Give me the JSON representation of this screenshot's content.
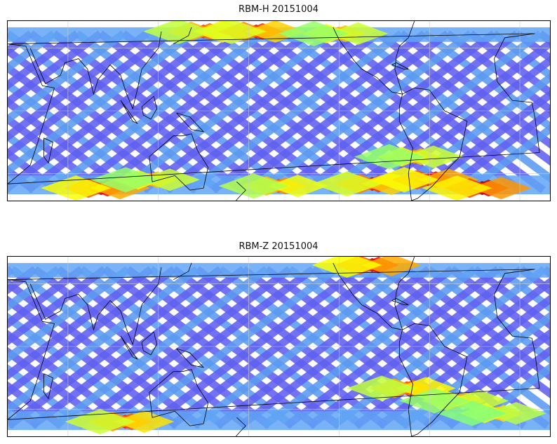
{
  "panels": [
    {
      "title": "RBM-H 20151004",
      "hot": [
        {
          "lon": 82,
          "lat": -37,
          "level": 0.95
        },
        {
          "lon": 115,
          "lat": -33,
          "level": 0.6
        },
        {
          "lon": 200,
          "lat": -36,
          "level": 0.7
        },
        {
          "lon": 262,
          "lat": -35,
          "level": 0.85
        },
        {
          "lon": 300,
          "lat": -33,
          "level": 0.95
        },
        {
          "lon": 335,
          "lat": -37,
          "level": 1.0
        },
        {
          "lon": 150,
          "lat": 38,
          "level": 0.75
        },
        {
          "lon": 185,
          "lat": 38,
          "level": 0.85
        },
        {
          "lon": 240,
          "lat": 37,
          "level": 0.6
        },
        {
          "lon": 290,
          "lat": -22,
          "level": 0.6
        }
      ]
    },
    {
      "title": "RBM-Z 20151004",
      "hot": [
        {
          "lon": 98,
          "lat": -36,
          "level": 0.8
        },
        {
          "lon": 262,
          "lat": 39,
          "level": 0.95
        },
        {
          "lon": 285,
          "lat": -20,
          "level": 0.75
        },
        {
          "lon": 320,
          "lat": -26,
          "level": 0.6
        },
        {
          "lon": 345,
          "lat": -32,
          "level": 0.55
        }
      ]
    }
  ],
  "map": {
    "lon_range": [
      20,
      380
    ],
    "lat_range": [
      -43,
      43
    ],
    "gridline_lons": [
      60,
      120,
      180,
      240,
      300,
      360
    ],
    "gridline_lats": [
      -30,
      0,
      30
    ]
  },
  "colors": {
    "track_base": "#6060f0",
    "coast": "#000000",
    "grid": "#cccccc"
  }
}
